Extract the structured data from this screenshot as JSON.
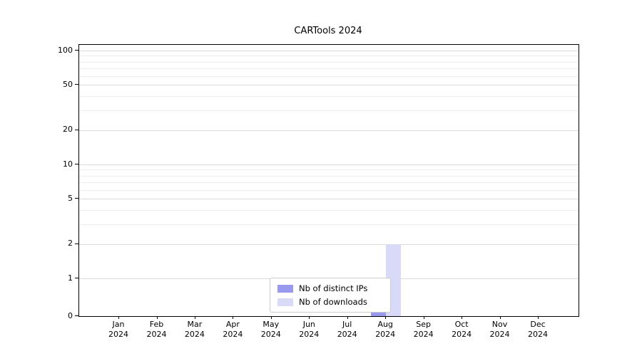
{
  "chart_data": {
    "type": "bar",
    "title": "CARTools 2024",
    "categories": [
      "Jan",
      "Feb",
      "Mar",
      "Apr",
      "May",
      "Jun",
      "Jul",
      "Aug",
      "Sep",
      "Oct",
      "Nov",
      "Dec"
    ],
    "year_label": "2024",
    "series": [
      {
        "name": "Nb of distinct IPs",
        "color": "#9999ee",
        "values": [
          0,
          0,
          0,
          0,
          0,
          0,
          0,
          1,
          0,
          0,
          0,
          0
        ]
      },
      {
        "name": "Nb of downloads",
        "color": "#d9d9f8",
        "values": [
          0,
          0,
          0,
          0,
          0,
          0,
          0,
          2,
          0,
          0,
          0,
          0
        ]
      }
    ],
    "yscale": "symlog",
    "y_ticks": [
      0,
      1,
      2,
      5,
      10,
      20,
      50,
      100
    ],
    "ylim": [
      0,
      100
    ],
    "grid": true,
    "legend_position": "lower center",
    "gridline_major_color": "#dcdcdc",
    "gridline_minor_color": "#ececec",
    "axis_color": "#000000",
    "background_color": "#ffffff"
  }
}
